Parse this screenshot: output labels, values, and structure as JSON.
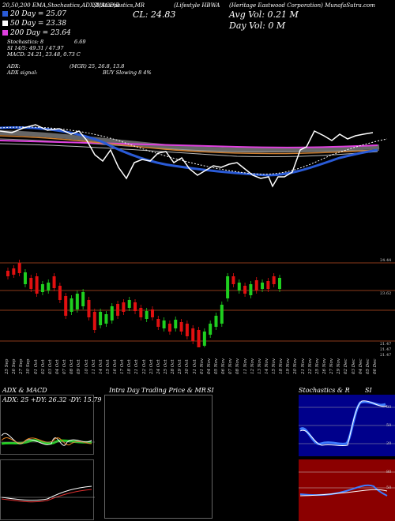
{
  "header": {
    "tags": "20,50,200 EMA,Stochastics,ADX,MACD,B",
    "tags2": "SI,Stochastics,MR",
    "symbol_line": "(Lifestyle HBWA",
    "company": "(Heritage Eastwood Corporation) MunafaSutra.com",
    "close": "CL: 24.83",
    "avg_vol": "Avg Vol: 0.21 M",
    "day_vol": "Day Vol: 0 M"
  },
  "legend": [
    {
      "label": "20 Day = 25.07",
      "color": "#2a5bd7"
    },
    {
      "label": "50 Day = 23.38",
      "color": "#ffffff"
    },
    {
      "label": "200 Day = 23.64",
      "color": "#e040e0"
    }
  ],
  "stats": [
    "Stochastics: 8",
    "6.69",
    "SI 14/5: 49.31 / 47.97",
    "MACD: 24.21, 23.48, 0.73 C"
  ],
  "adx": {
    "label": "ADX:",
    "value": "(MGR) 25, 26.8, 13.8",
    "signal_label": "ADX signal:",
    "signal": "BUY Slowing 8 4%"
  },
  "price_levels": [
    "24.44",
    "23.62",
    "21.47",
    "21.47",
    "21.47"
  ],
  "dates": [
    "25 Sep",
    "26 Sep",
    "27 Sep",
    "30 Sep",
    "01 Oct",
    "02 Oct",
    "03 Oct",
    "04 Oct",
    "07 Oct",
    "08 Oct",
    "09 Oct",
    "10 Oct",
    "11 Oct",
    "14 Oct",
    "15 Oct",
    "16 Oct",
    "17 Oct",
    "18 Oct",
    "21 Oct",
    "22 Oct",
    "23 Oct",
    "24 Oct",
    "25 Oct",
    "28 Oct",
    "29 Oct",
    "30 Oct",
    "31 Oct",
    "01 Nov",
    "04 Nov",
    "05 Nov",
    "06 Nov",
    "07 Nov",
    "08 Nov",
    "11 Nov",
    "12 Nov",
    "13 Nov",
    "14 Nov",
    "15 Nov",
    "18 Nov",
    "19 Nov",
    "20 Nov",
    "21 Nov",
    "22 Nov",
    "25 Nov",
    "26 Nov",
    "27 Nov",
    "29 Nov",
    "02 Dec",
    "03 Dec",
    "04 Dec",
    "05 Dec",
    "06 Dec"
  ],
  "panels": {
    "adx_title": "ADX & MACD",
    "adx_stats": "ADX: 25 +DY: 26.32 -DY: 15.79",
    "intraday_title": "Intra Day Trading Price & MR",
    "intraday_si": "SI",
    "stoch_title": "Stochastics & R",
    "stoch_si": "SI",
    "stoch_levels": [
      "80",
      "50",
      "20"
    ],
    "rsi_levels": [
      "80",
      "50"
    ]
  },
  "colors": {
    "up": "#1fcf1f",
    "down": "#e01010",
    "ema20": "#2a5bd7",
    "ema50": "#ffffff",
    "ema200": "#e040e0"
  }
}
